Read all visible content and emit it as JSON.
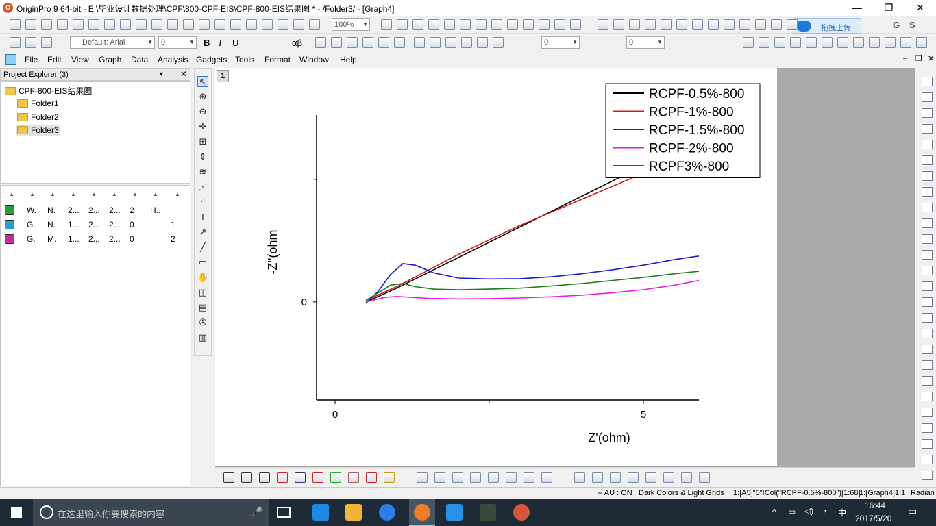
{
  "window": {
    "title": "OriginPro 9 64-bit - E:\\毕业设计数据处理\\CPF\\800-CPF-EIS\\CPF-800-EIS结果图 * - /Folder3/ - [Graph4]",
    "app_icon_label": "O",
    "controls": {
      "minimize": "—",
      "maximize": "❐",
      "close": "✕"
    }
  },
  "toolbar": {
    "zoom_value": "100%",
    "font_name": "Default: Arial",
    "font_size": "0",
    "line_width": "0",
    "pattern_width": "0",
    "cloud_upload_label": "拖拽上传",
    "bold": "B",
    "italic": "I",
    "underline": "U",
    "greek": "αβ",
    "letter_g": "G",
    "letter_s": "S"
  },
  "menubar": {
    "items": [
      "File",
      "Edit",
      "View",
      "Graph",
      "Data",
      "Analysis",
      "Gadgets",
      "Tools",
      "Format",
      "Window",
      "Help"
    ]
  },
  "project_explorer": {
    "title": "Project Explorer (3)",
    "root": "CPF-800-EIS结果图",
    "folders": [
      "Folder1",
      "Folder2",
      "Folder3"
    ],
    "selected_folder": "Folder3",
    "rows": [
      {
        "cells": [
          "W.",
          "N.",
          "2...",
          "2...",
          "2...",
          "2",
          "H.."
        ],
        "extra": ""
      },
      {
        "cells": [
          "G.",
          "N.",
          "1...",
          "2...",
          "2...",
          "0",
          ""
        ],
        "extra": "1"
      },
      {
        "cells": [
          "G.",
          "M.",
          "1...",
          "2...",
          "2...",
          "0",
          ""
        ],
        "extra": "2"
      }
    ]
  },
  "graph": {
    "layer_label": "1"
  },
  "chart_data": {
    "type": "line",
    "title": "",
    "xlabel": "Z'(ohm)",
    "ylabel": "-Z''(ohm",
    "xlim": [
      -0.3,
      5.9
    ],
    "ylim": [
      -3.2,
      6.1
    ],
    "x_ticks": [
      0,
      5
    ],
    "x_tick_labels": [
      "0",
      "5"
    ],
    "y_ticks": [
      0
    ],
    "y_tick_labels": [
      "0"
    ],
    "legend_position": "top-right",
    "series": [
      {
        "name": "RCPF-0.5%-800",
        "color": "#000000",
        "x": [
          0.5,
          1.0,
          2.0,
          3.0,
          4.0,
          5.0,
          5.9
        ],
        "y": [
          0.0,
          0.45,
          1.45,
          2.45,
          3.45,
          4.45,
          5.4
        ]
      },
      {
        "name": "RCPF-1%-800",
        "color": "#d11a1a",
        "x": [
          0.5,
          1.0,
          2.0,
          3.0,
          4.0,
          5.0,
          5.9
        ],
        "y": [
          0.05,
          0.5,
          1.55,
          2.5,
          3.35,
          4.2,
          4.95
        ]
      },
      {
        "name": "RCPF-1.5%-800",
        "color": "#1a1ad1",
        "x": [
          0.5,
          0.7,
          0.9,
          1.1,
          1.3,
          1.6,
          2.0,
          2.5,
          3.0,
          3.5,
          4.0,
          4.5,
          5.0,
          5.5,
          5.9
        ],
        "y": [
          -0.05,
          0.35,
          0.9,
          1.25,
          1.2,
          0.95,
          0.78,
          0.75,
          0.76,
          0.82,
          0.92,
          1.05,
          1.2,
          1.38,
          1.5
        ]
      },
      {
        "name": "RCPF-2%-800",
        "color": "#e619e6",
        "x": [
          0.5,
          0.8,
          1.0,
          1.5,
          2.0,
          2.5,
          3.0,
          3.5,
          4.0,
          4.5,
          5.0,
          5.5,
          5.9
        ],
        "y": [
          0.0,
          0.15,
          0.18,
          0.12,
          0.1,
          0.11,
          0.13,
          0.17,
          0.22,
          0.3,
          0.4,
          0.55,
          0.7
        ]
      },
      {
        "name": "RCPF3%-800",
        "color": "#1f7a1f",
        "x": [
          0.5,
          0.7,
          0.9,
          1.1,
          1.3,
          1.6,
          2.0,
          2.5,
          3.0,
          3.5,
          4.0,
          4.5,
          5.0,
          5.5,
          5.9
        ],
        "y": [
          0.05,
          0.3,
          0.55,
          0.6,
          0.5,
          0.42,
          0.4,
          0.42,
          0.45,
          0.52,
          0.6,
          0.7,
          0.8,
          0.92,
          1.0
        ]
      }
    ]
  },
  "statusbar": {
    "au": "-- AU : ON",
    "theme": "Dark Colors & Light Grids",
    "cell_ref": "1:[A5]\"5\"!Col(\"RCPF-0.5%-800\")[1:68]",
    "graph_ref": "1:[Graph4]1!1",
    "angle": "Radian"
  },
  "taskbar": {
    "search_placeholder": "在这里输入你要搜索的内容",
    "time": "16:44",
    "date": "2017/5/20",
    "ime": "中"
  }
}
